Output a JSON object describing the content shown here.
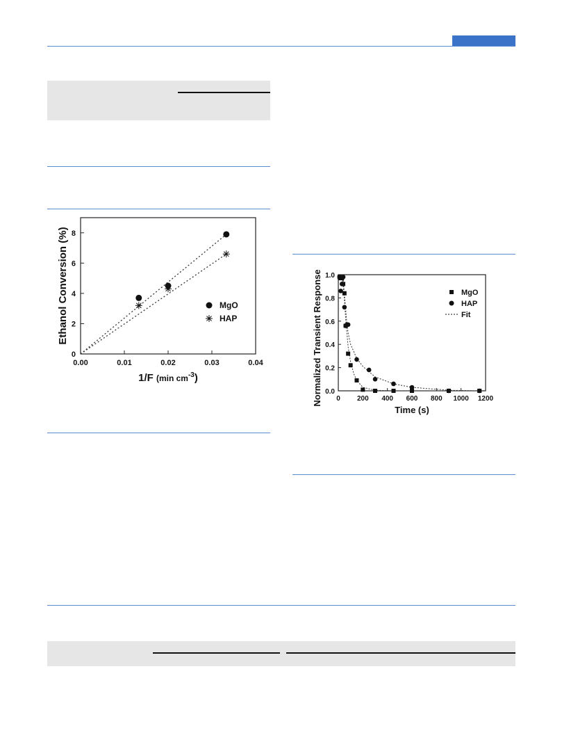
{
  "page": {
    "accent_color": "#3b73c8",
    "rule_color": "#5b8bd0",
    "panel_color": "#e6e6e6"
  },
  "chart_data": [
    {
      "type": "scatter",
      "xlabel_main": "1/F ",
      "xlabel_unit": "(min cm",
      "xlabel_sup": "-3",
      "xlabel_close": ")",
      "ylabel": "Ethanol Conversion (%)",
      "xlim": [
        0.0,
        0.04
      ],
      "ylim": [
        0,
        9
      ],
      "xticks": [
        "0.00",
        "0.01",
        "0.02",
        "0.03",
        "0.04"
      ],
      "xtick_values": [
        0.0,
        0.01,
        0.02,
        0.03,
        0.04
      ],
      "yticks": [
        "0",
        "2",
        "4",
        "6",
        "8"
      ],
      "ytick_values": [
        0,
        2,
        4,
        6,
        8
      ],
      "series": [
        {
          "name": "MgO",
          "marker": "circle",
          "x": [
            0.0133,
            0.02,
            0.0333
          ],
          "y": [
            3.7,
            4.5,
            7.9
          ],
          "fit": [
            [
              0.0,
              0.0
            ],
            [
              0.0333,
              7.9
            ]
          ]
        },
        {
          "name": "HAP",
          "marker": "asterisk",
          "x": [
            0.0133,
            0.02,
            0.0333
          ],
          "y": [
            3.2,
            4.3,
            6.6
          ],
          "fit": [
            [
              0.0,
              0.0
            ],
            [
              0.0333,
              6.6
            ]
          ]
        }
      ],
      "legend": "center-right"
    },
    {
      "type": "scatter",
      "xlabel": "Time (s)",
      "ylabel": "Normalized Transient Response",
      "xlim": [
        0,
        1200
      ],
      "ylim": [
        0,
        1.0
      ],
      "xticks": [
        "0",
        "200",
        "400",
        "600",
        "800",
        "1000",
        "1200"
      ],
      "xtick_values": [
        0,
        200,
        400,
        600,
        800,
        1000,
        1200
      ],
      "yticks": [
        "0.0",
        "0.2",
        "0.4",
        "0.6",
        "0.8",
        "1.0"
      ],
      "ytick_values": [
        0.0,
        0.2,
        0.4,
        0.6,
        0.8,
        1.0
      ],
      "series": [
        {
          "name": "MgO",
          "marker": "square",
          "x": [
            10,
            20,
            30,
            40,
            50,
            60,
            80,
            100,
            150,
            200,
            300,
            450,
            600,
            900,
            1150
          ],
          "y": [
            0.98,
            0.97,
            0.97,
            0.92,
            0.84,
            0.56,
            0.32,
            0.22,
            0.09,
            0.01,
            0.0,
            0.0,
            0.0,
            0.0,
            0.0
          ]
        },
        {
          "name": "HAP",
          "marker": "circle",
          "x": [
            10,
            20,
            30,
            40,
            50,
            60,
            70,
            80,
            150,
            250,
            300,
            450,
            600,
            900,
            1150
          ],
          "y": [
            0.98,
            0.86,
            0.92,
            0.98,
            0.72,
            0.56,
            0.57,
            0.57,
            0.27,
            0.18,
            0.1,
            0.06,
            0.03,
            0.0,
            0.0
          ]
        }
      ],
      "fit_label": "Fit",
      "fits": [
        {
          "points": [
            [
              30,
              1.0
            ],
            [
              40,
              0.9
            ],
            [
              50,
              0.78
            ],
            [
              60,
              0.62
            ],
            [
              80,
              0.38
            ],
            [
              100,
              0.25
            ],
            [
              125,
              0.15
            ],
            [
              150,
              0.09
            ],
            [
              200,
              0.03
            ],
            [
              300,
              0.005
            ],
            [
              450,
              0.0
            ],
            [
              1150,
              0.0
            ]
          ]
        },
        {
          "points": [
            [
              30,
              1.0
            ],
            [
              40,
              0.95
            ],
            [
              50,
              0.83
            ],
            [
              60,
              0.7
            ],
            [
              70,
              0.58
            ],
            [
              80,
              0.5
            ],
            [
              100,
              0.4
            ],
            [
              150,
              0.28
            ],
            [
              200,
              0.21
            ],
            [
              300,
              0.12
            ],
            [
              450,
              0.06
            ],
            [
              600,
              0.03
            ],
            [
              900,
              0.005
            ],
            [
              1150,
              0.0
            ]
          ]
        }
      ],
      "legend": "top-right"
    }
  ]
}
